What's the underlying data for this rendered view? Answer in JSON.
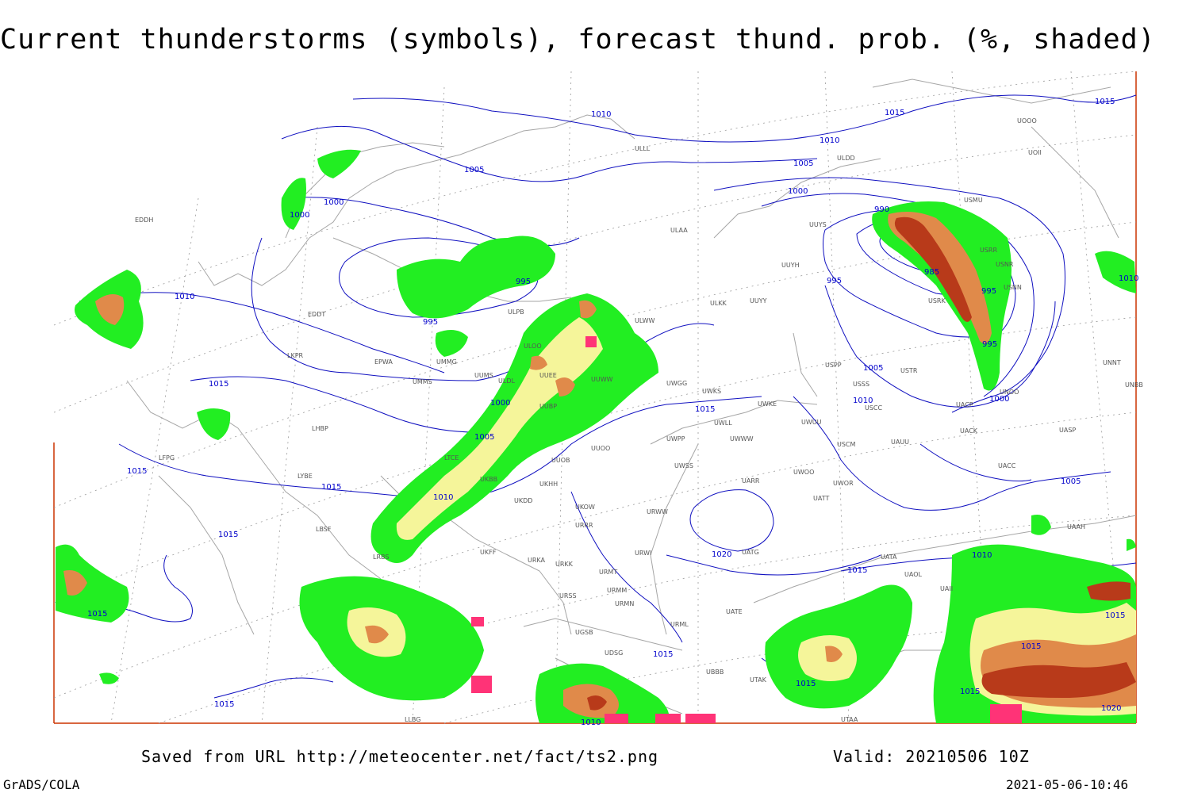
{
  "title": "Current thunderstorms (symbols), forecast thund. prob. (%, shaded)",
  "footer": {
    "saved": "Saved from URL http://meteocenter.net/fact/ts2.png",
    "valid": "Valid: 20210506 10Z",
    "software": "GrADS/COLA",
    "generated": "2021-05-06-10:46"
  },
  "colors": {
    "isobar": "#1010c0",
    "coast": "#a6a6a6",
    "grid": "#9a9a9a",
    "border": "#cc3300",
    "prob_low": "#22ee22",
    "prob_mid": "#f5f59a",
    "prob_high": "#e08a4a",
    "prob_max": "#b83a1a",
    "storm_symbol": "#ff3377"
  },
  "isobar_labels": [
    "1010",
    "1005",
    "1000",
    "1000",
    "995",
    "995",
    "1010",
    "1015",
    "1015",
    "1015",
    "1000",
    "1005",
    "1010",
    "1015",
    "1015",
    "1010",
    "1015",
    "1015",
    "1010",
    "1005",
    "1000",
    "995",
    "990",
    "985",
    "995",
    "995",
    "1005",
    "1010",
    "1000",
    "1005",
    "1015",
    "1015",
    "1020",
    "1015",
    "1010",
    "1015",
    "1015",
    "1010",
    "1015",
    "1015",
    "1015",
    "1020",
    "1010"
  ],
  "station_labels": [
    "ULAA",
    "UUYY",
    "ULLL",
    "ULPB",
    "ULOO",
    "ULWW",
    "ULKK",
    "UUYH",
    "UUYS",
    "ULDD",
    "USMU",
    "USRR",
    "USNR",
    "USSS",
    "USNN",
    "USRK",
    "USPP",
    "USTR",
    "USCC",
    "UNOO",
    "UNNT",
    "UNBB",
    "UASP",
    "UACK",
    "UACP",
    "USCM",
    "UAUU",
    "UACC",
    "UAAH",
    "UATG",
    "UATT",
    "UARR",
    "UWOO",
    "UWOR",
    "UWKE",
    "UWUU",
    "UWKS",
    "UWGG",
    "UWWW",
    "UWPP",
    "UWSS",
    "UWLL",
    "URWW",
    "URWI",
    "URRR",
    "UKOW",
    "UUOO",
    "UUOB",
    "UUEE",
    "UUWW",
    "UUBP",
    "UUMS",
    "ULDL",
    "UMMG",
    "UMMS",
    "EPWA",
    "LKPR",
    "EDDT",
    "LHBP",
    "LYBE",
    "LBSF",
    "LRBS",
    "UKBB",
    "UKDD",
    "UKHH",
    "UKFF",
    "URKA",
    "URKK",
    "URMT",
    "URMM",
    "URMN",
    "URSS",
    "UGSB",
    "UBBB",
    "URML",
    "UATE",
    "UATA",
    "UAOL",
    "UAII",
    "UTAK",
    "UTAA",
    "LLBG",
    "EDDH",
    "LFPG",
    "UDSG",
    "UOOO",
    "UOII",
    "LTCE"
  ]
}
